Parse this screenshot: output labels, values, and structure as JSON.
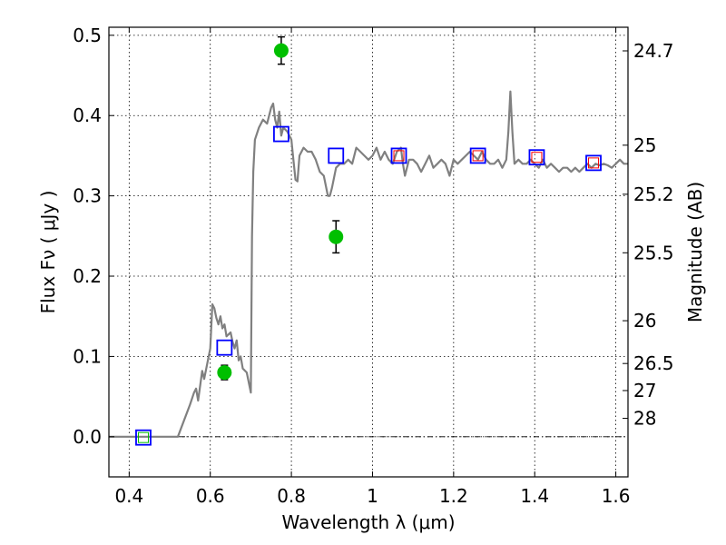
{
  "chart_data": {
    "type": "line",
    "xlabel": "Wavelength  λ (μm)",
    "ylabel": "Flux  F_ν  ( μJy )",
    "ylabel_right": "Magnitude (AB)",
    "xlim": [
      0.35,
      1.63
    ],
    "ylim": [
      -0.05,
      0.51
    ],
    "grid": true,
    "x_ticks": [
      0.4,
      0.6,
      0.8,
      1.0,
      1.2,
      1.4,
      1.6
    ],
    "x_tick_labels": [
      "0.4",
      "0.6",
      "0.8",
      "1",
      "1.2",
      "1.4",
      "1.6"
    ],
    "y_ticks": [
      0.0,
      0.1,
      0.2,
      0.3,
      0.4,
      0.5
    ],
    "y_tick_labels": [
      "0.0",
      "0.1",
      "0.2",
      "0.3",
      "0.4",
      "0.5"
    ],
    "right_ticks": [
      {
        "flux": 0.4806,
        "label": "24.7"
      },
      {
        "flux": 0.3631,
        "label": "25"
      },
      {
        "flux": 0.302,
        "label": "25.2"
      },
      {
        "flux": 0.2291,
        "label": "25.5"
      },
      {
        "flux": 0.1445,
        "label": "26"
      },
      {
        "flux": 0.0912,
        "label": "26.5"
      },
      {
        "flux": 0.0575,
        "label": "27"
      },
      {
        "flux": 0.0229,
        "label": "28"
      }
    ],
    "zero_line": 0.0,
    "colors": {
      "spectrum": "#808080",
      "model_box": "#0000ff",
      "inner_box": "#ff0000",
      "zero_box_inner": "#00bf00",
      "observed": "#00bf00",
      "errorbar": "#000000"
    },
    "series": [
      {
        "kind": "line",
        "points": [
          [
            0.35,
            0.0
          ],
          [
            0.52,
            0.0
          ],
          [
            0.55,
            0.04
          ],
          [
            0.56,
            0.055
          ],
          [
            0.565,
            0.06
          ],
          [
            0.57,
            0.045
          ],
          [
            0.58,
            0.082
          ],
          [
            0.585,
            0.072
          ],
          [
            0.59,
            0.085
          ],
          [
            0.6,
            0.11
          ],
          [
            0.605,
            0.165
          ],
          [
            0.61,
            0.16
          ],
          [
            0.615,
            0.148
          ],
          [
            0.62,
            0.14
          ],
          [
            0.625,
            0.15
          ],
          [
            0.63,
            0.135
          ],
          [
            0.635,
            0.14
          ],
          [
            0.64,
            0.125
          ],
          [
            0.65,
            0.13
          ],
          [
            0.655,
            0.118
          ],
          [
            0.66,
            0.11
          ],
          [
            0.665,
            0.12
          ],
          [
            0.67,
            0.095
          ],
          [
            0.675,
            0.1
          ],
          [
            0.68,
            0.085
          ],
          [
            0.69,
            0.08
          ],
          [
            0.7,
            0.055
          ],
          [
            0.703,
            0.25
          ],
          [
            0.706,
            0.33
          ],
          [
            0.71,
            0.37
          ],
          [
            0.72,
            0.385
          ],
          [
            0.73,
            0.395
          ],
          [
            0.74,
            0.39
          ],
          [
            0.75,
            0.41
          ],
          [
            0.755,
            0.415
          ],
          [
            0.76,
            0.395
          ],
          [
            0.765,
            0.385
          ],
          [
            0.77,
            0.405
          ],
          [
            0.775,
            0.375
          ],
          [
            0.78,
            0.385
          ],
          [
            0.79,
            0.38
          ],
          [
            0.8,
            0.37
          ],
          [
            0.805,
            0.345
          ],
          [
            0.81,
            0.32
          ],
          [
            0.815,
            0.318
          ],
          [
            0.82,
            0.35
          ],
          [
            0.83,
            0.36
          ],
          [
            0.84,
            0.355
          ],
          [
            0.85,
            0.355
          ],
          [
            0.86,
            0.345
          ],
          [
            0.87,
            0.33
          ],
          [
            0.88,
            0.325
          ],
          [
            0.89,
            0.3
          ],
          [
            0.895,
            0.3
          ],
          [
            0.9,
            0.31
          ],
          [
            0.91,
            0.335
          ],
          [
            0.92,
            0.34
          ],
          [
            0.93,
            0.34
          ],
          [
            0.94,
            0.345
          ],
          [
            0.95,
            0.34
          ],
          [
            0.96,
            0.36
          ],
          [
            0.97,
            0.355
          ],
          [
            0.98,
            0.35
          ],
          [
            0.99,
            0.345
          ],
          [
            1.0,
            0.35
          ],
          [
            1.01,
            0.36
          ],
          [
            1.02,
            0.345
          ],
          [
            1.03,
            0.355
          ],
          [
            1.04,
            0.345
          ],
          [
            1.05,
            0.34
          ],
          [
            1.06,
            0.355
          ],
          [
            1.07,
            0.36
          ],
          [
            1.075,
            0.34
          ],
          [
            1.08,
            0.325
          ],
          [
            1.09,
            0.345
          ],
          [
            1.1,
            0.345
          ],
          [
            1.11,
            0.34
          ],
          [
            1.12,
            0.33
          ],
          [
            1.13,
            0.34
          ],
          [
            1.14,
            0.35
          ],
          [
            1.15,
            0.335
          ],
          [
            1.16,
            0.34
          ],
          [
            1.17,
            0.345
          ],
          [
            1.18,
            0.34
          ],
          [
            1.19,
            0.325
          ],
          [
            1.2,
            0.345
          ],
          [
            1.21,
            0.34
          ],
          [
            1.22,
            0.345
          ],
          [
            1.23,
            0.35
          ],
          [
            1.24,
            0.355
          ],
          [
            1.25,
            0.35
          ],
          [
            1.26,
            0.345
          ],
          [
            1.27,
            0.355
          ],
          [
            1.28,
            0.345
          ],
          [
            1.29,
            0.34
          ],
          [
            1.3,
            0.34
          ],
          [
            1.31,
            0.345
          ],
          [
            1.32,
            0.335
          ],
          [
            1.33,
            0.345
          ],
          [
            1.335,
            0.38
          ],
          [
            1.34,
            0.43
          ],
          [
            1.345,
            0.38
          ],
          [
            1.35,
            0.34
          ],
          [
            1.36,
            0.345
          ],
          [
            1.37,
            0.34
          ],
          [
            1.38,
            0.34
          ],
          [
            1.39,
            0.345
          ],
          [
            1.4,
            0.34
          ],
          [
            1.41,
            0.335
          ],
          [
            1.42,
            0.345
          ],
          [
            1.43,
            0.335
          ],
          [
            1.44,
            0.34
          ],
          [
            1.45,
            0.335
          ],
          [
            1.46,
            0.33
          ],
          [
            1.47,
            0.335
          ],
          [
            1.48,
            0.335
          ],
          [
            1.49,
            0.33
          ],
          [
            1.5,
            0.335
          ],
          [
            1.51,
            0.33
          ],
          [
            1.52,
            0.335
          ],
          [
            1.53,
            0.34
          ],
          [
            1.54,
            0.335
          ],
          [
            1.55,
            0.34
          ],
          [
            1.56,
            0.338
          ],
          [
            1.57,
            0.34
          ],
          [
            1.58,
            0.338
          ],
          [
            1.59,
            0.335
          ],
          [
            1.6,
            0.34
          ],
          [
            1.61,
            0.345
          ],
          [
            1.62,
            0.34
          ],
          [
            1.63,
            0.34
          ]
        ]
      },
      {
        "kind": "box",
        "points": [
          {
            "x": 0.435,
            "y": -0.001,
            "inner": "green"
          },
          {
            "x": 0.635,
            "y": 0.111,
            "inner": null
          },
          {
            "x": 0.775,
            "y": 0.377,
            "inner": null
          },
          {
            "x": 0.91,
            "y": 0.35,
            "inner": null
          },
          {
            "x": 1.065,
            "y": 0.35,
            "inner": "red"
          },
          {
            "x": 1.26,
            "y": 0.35,
            "inner": "red"
          },
          {
            "x": 1.405,
            "y": 0.348,
            "inner": "red"
          },
          {
            "x": 1.545,
            "y": 0.341,
            "inner": "red"
          }
        ]
      },
      {
        "kind": "observed",
        "points": [
          {
            "x": 0.635,
            "y": 0.08,
            "err": 0.009
          },
          {
            "x": 0.775,
            "y": 0.481,
            "err": 0.017
          },
          {
            "x": 0.91,
            "y": 0.249,
            "err": 0.02
          }
        ]
      }
    ]
  }
}
